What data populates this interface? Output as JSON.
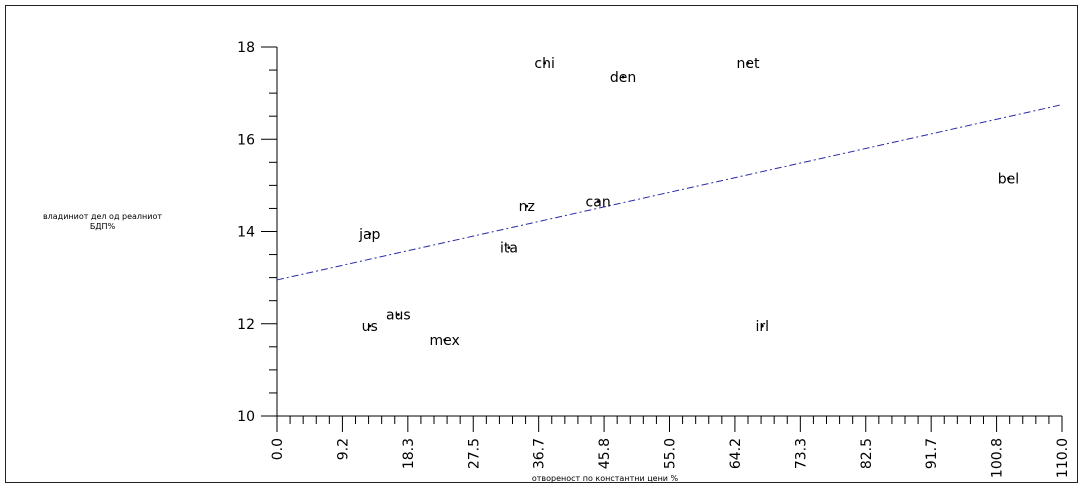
{
  "chart_data": {
    "type": "scatter",
    "title": "",
    "xlabel": "отвореност по константни цени  %",
    "ylabel_lines": [
      "владиниот дел од реалниот",
      "БДП%"
    ],
    "xlim": [
      0,
      110
    ],
    "ylim": [
      10,
      18
    ],
    "xticks": [
      "0.0",
      "9.2",
      "18.3",
      "27.5",
      "36.7",
      "45.8",
      "55.0",
      "64.2",
      "73.3",
      "82.5",
      "91.7",
      "100.8",
      "110.0"
    ],
    "yticks": [
      "10",
      "12",
      "14",
      "16",
      "18"
    ],
    "points": [
      {
        "label": "chi",
        "x": 37.5,
        "y": 17.65
      },
      {
        "label": "den",
        "x": 48.5,
        "y": 17.35
      },
      {
        "label": "net",
        "x": 66.0,
        "y": 17.65
      },
      {
        "label": "bel",
        "x": 102.5,
        "y": 15.15
      },
      {
        "label": "nz",
        "x": 35.0,
        "y": 14.55
      },
      {
        "label": "can",
        "x": 45.0,
        "y": 14.65
      },
      {
        "label": "jap",
        "x": 13.0,
        "y": 13.95
      },
      {
        "label": "ita",
        "x": 32.5,
        "y": 13.65
      },
      {
        "label": "aus",
        "x": 17.0,
        "y": 12.2
      },
      {
        "label": "us",
        "x": 13.0,
        "y": 11.95
      },
      {
        "label": "mex",
        "x": 23.5,
        "y": 11.65
      },
      {
        "label": "irl",
        "x": 68.0,
        "y": 11.95
      }
    ],
    "fit_line": {
      "x": [
        0,
        110
      ],
      "y": [
        12.95,
        16.75
      ]
    },
    "grid": false,
    "legend": "none"
  }
}
